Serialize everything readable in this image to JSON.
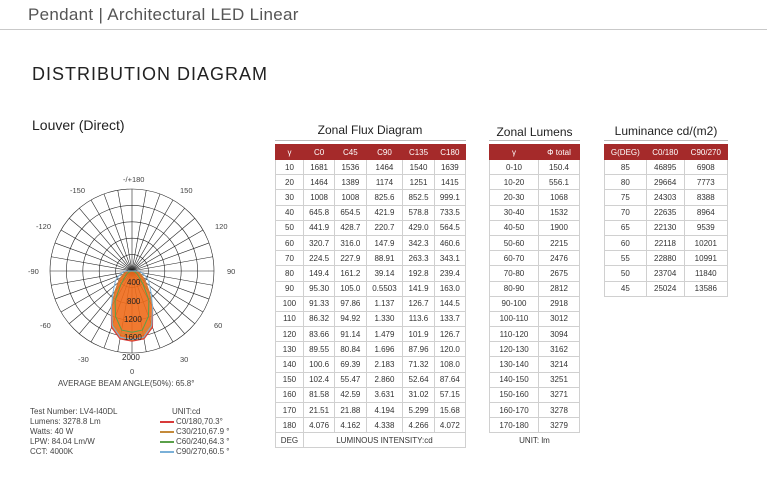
{
  "header": "Pendant | Architectural LED Linear",
  "section_title": "DISTRIBUTION DIAGRAM",
  "subtitle": "Louver (Direct)",
  "polar": {
    "top_label": "-/+180",
    "labels": {
      "l150": "-150",
      "r150": "150",
      "l120": "-120",
      "r120": "120",
      "l90": "-90",
      "r90": "90",
      "l60": "-60",
      "r60": "60",
      "l30": "-30",
      "r30": "30",
      "bottom": "0"
    },
    "ring_labels": [
      "400",
      "800",
      "1200",
      "1600",
      "2000"
    ],
    "avg_beam": "AVERAGE BEAM ANGLE(50%): 65.8°"
  },
  "info": [
    "Test Number: LV4-I40DL",
    "Lumens: 3278.8 Lm",
    "Watts: 40 W",
    "LPW: 84.04 Lm/W",
    "CCT: 4000K"
  ],
  "unit_label": "UNIT:cd",
  "legend": [
    {
      "label": "C0/180,70.3°",
      "color": "#d83a3a"
    },
    {
      "label": "C30/210,67.9 °",
      "color": "#c48a3a"
    },
    {
      "label": "C60/240,64.3 °",
      "color": "#5aa04a"
    },
    {
      "label": "C90/270,60.5 °",
      "color": "#7ab0d8"
    }
  ],
  "flux": {
    "title": "Zonal Flux Diagram",
    "headers": [
      "γ",
      "C0",
      "C45",
      "C90",
      "C135",
      "C180"
    ],
    "rows": [
      [
        "10",
        "1681",
        "1536",
        "1464",
        "1540",
        "1639"
      ],
      [
        "20",
        "1464",
        "1389",
        "1174",
        "1251",
        "1415"
      ],
      [
        "30",
        "1008",
        "1008",
        "825.6",
        "852.5",
        "999.1"
      ],
      [
        "40",
        "645.8",
        "654.5",
        "421.9",
        "578.8",
        "733.5"
      ],
      [
        "50",
        "441.9",
        "428.7",
        "220.7",
        "429.0",
        "564.5"
      ],
      [
        "60",
        "320.7",
        "316.0",
        "147.9",
        "342.3",
        "460.6"
      ],
      [
        "70",
        "224.5",
        "227.9",
        "88.91",
        "263.3",
        "343.1"
      ],
      [
        "80",
        "149.4",
        "161.2",
        "39.14",
        "192.8",
        "239.4"
      ],
      [
        "90",
        "95.30",
        "105.0",
        "0.5503",
        "141.9",
        "163.0"
      ],
      [
        "100",
        "91.33",
        "97.86",
        "1.137",
        "126.7",
        "144.5"
      ],
      [
        "110",
        "86.32",
        "94.92",
        "1.330",
        "113.6",
        "133.7"
      ],
      [
        "120",
        "83.66",
        "91.14",
        "1.479",
        "101.9",
        "126.7"
      ],
      [
        "130",
        "89.55",
        "80.84",
        "1.696",
        "87.96",
        "120.0"
      ],
      [
        "140",
        "100.6",
        "69.39",
        "2.183",
        "71.32",
        "108.0"
      ],
      [
        "150",
        "102.4",
        "55.47",
        "2.860",
        "52.64",
        "87.64"
      ],
      [
        "160",
        "81.58",
        "42.59",
        "3.631",
        "31.02",
        "57.15"
      ],
      [
        "170",
        "21.51",
        "21.88",
        "4.194",
        "5.299",
        "15.68"
      ],
      [
        "180",
        "4.076",
        "4.162",
        "4.338",
        "4.266",
        "4.072"
      ]
    ],
    "foot_left": "DEG",
    "foot_right": "LUMINOUS INTENSITY:cd"
  },
  "lumens": {
    "title": "Zonal Lumens",
    "headers": [
      "γ",
      "Φ total"
    ],
    "rows": [
      [
        "0-10",
        "150.4"
      ],
      [
        "10-20",
        "556.1"
      ],
      [
        "20-30",
        "1068"
      ],
      [
        "30-40",
        "1532"
      ],
      [
        "40-50",
        "1900"
      ],
      [
        "50-60",
        "2215"
      ],
      [
        "60-70",
        "2476"
      ],
      [
        "70-80",
        "2675"
      ],
      [
        "80-90",
        "2812"
      ],
      [
        "90-100",
        "2918"
      ],
      [
        "100-110",
        "3012"
      ],
      [
        "110-120",
        "3094"
      ],
      [
        "120-130",
        "3162"
      ],
      [
        "130-140",
        "3214"
      ],
      [
        "140-150",
        "3251"
      ],
      [
        "150-160",
        "3271"
      ],
      [
        "160-170",
        "3278"
      ],
      [
        "170-180",
        "3279"
      ]
    ],
    "foot": "UNIT: lm"
  },
  "luminance": {
    "title": "Luminance cd/(m2)",
    "headers": [
      "G(DEG)",
      "C0/180",
      "C90/270"
    ],
    "rows": [
      [
        "85",
        "46895",
        "6908"
      ],
      [
        "80",
        "29664",
        "7773"
      ],
      [
        "75",
        "24303",
        "8388"
      ],
      [
        "70",
        "22635",
        "8964"
      ],
      [
        "65",
        "22130",
        "9539"
      ],
      [
        "60",
        "22118",
        "10201"
      ],
      [
        "55",
        "22880",
        "10991"
      ],
      [
        "50",
        "23704",
        "11840"
      ],
      [
        "45",
        "25024",
        "13586"
      ]
    ]
  }
}
